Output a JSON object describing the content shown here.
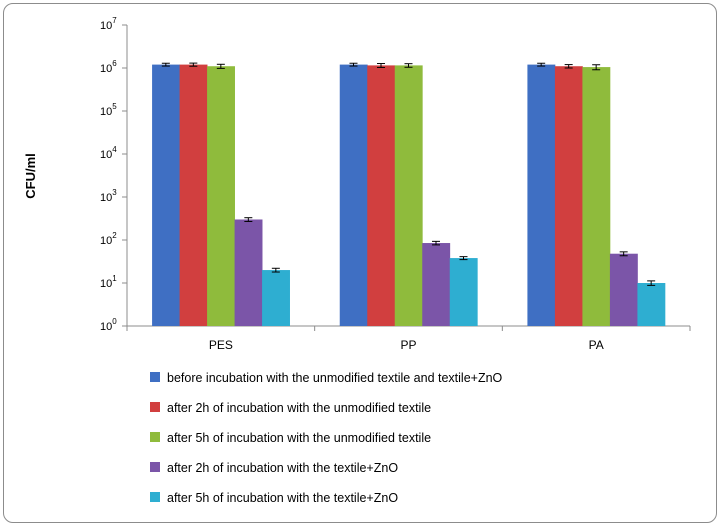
{
  "chart_data": {
    "type": "bar",
    "title": "",
    "xlabel": "",
    "ylabel": "CFU/ml",
    "yscale": "log",
    "ylim": [
      1,
      10000000
    ],
    "y_ticks": [
      {
        "base": "10",
        "exp": "0"
      },
      {
        "base": "10",
        "exp": "1"
      },
      {
        "base": "10",
        "exp": "2"
      },
      {
        "base": "10",
        "exp": "3"
      },
      {
        "base": "10",
        "exp": "4"
      },
      {
        "base": "10",
        "exp": "5"
      },
      {
        "base": "10",
        "exp": "6"
      },
      {
        "base": "10",
        "exp": "7"
      }
    ],
    "grid": false,
    "error_bars": true,
    "legend_position": "bottom",
    "categories": [
      "PES",
      "PP",
      "PA"
    ],
    "series": [
      {
        "name": "before incubation with the unmodified textile and textile+ZnO",
        "color": "#3f6fc3",
        "values": [
          1200000,
          1200000,
          1200000
        ],
        "errors": [
          90000,
          90000,
          90000
        ]
      },
      {
        "name": "after 2h of incubation with the unmodified textile",
        "color": "#d13f3f",
        "values": [
          1200000,
          1150000,
          1100000
        ],
        "errors": [
          100000,
          120000,
          100000
        ]
      },
      {
        "name": "after 5h of incubation with the unmodified textile",
        "color": "#8fbb3c",
        "values": [
          1100000,
          1150000,
          1050000
        ],
        "errors": [
          120000,
          110000,
          140000
        ]
      },
      {
        "name": "after 2h of incubation with the textile+ZnO",
        "color": "#7b55a8",
        "values": [
          300,
          85,
          48
        ],
        "errors": [
          30,
          8,
          5
        ]
      },
      {
        "name": "after 5h of incubation with the textile+ZnO",
        "color": "#2eaed1",
        "values": [
          20,
          38,
          10
        ],
        "errors": [
          2,
          3,
          1.2
        ]
      }
    ]
  }
}
